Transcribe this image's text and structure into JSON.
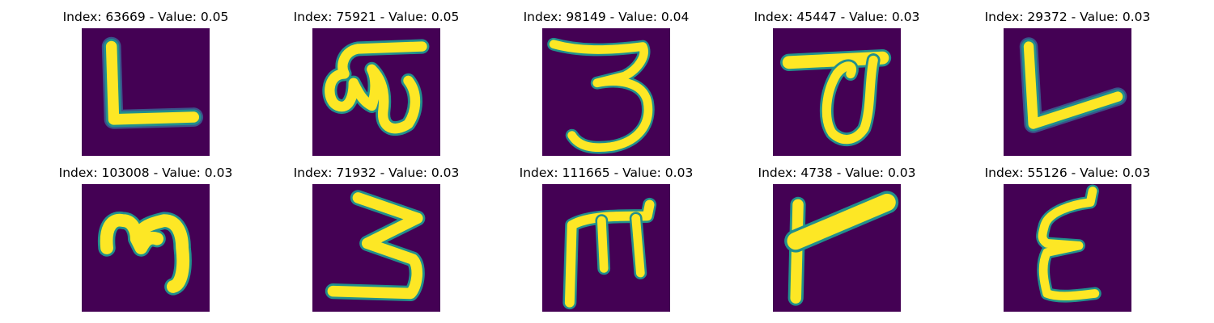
{
  "figure": {
    "panels": [
      {
        "index": "63669",
        "value": "0.05",
        "title": "Index: 63669 - Value: 0.05",
        "glyph": "glyph-L"
      },
      {
        "index": "75921",
        "value": "0.05",
        "title": "Index: 75921 - Value: 0.05",
        "glyph": "glyph-ta"
      },
      {
        "index": "98149",
        "value": "0.04",
        "title": "Index: 98149 - Value: 0.04",
        "glyph": "glyph-3"
      },
      {
        "index": "45447",
        "value": "0.03",
        "title": "Index: 45447 - Value: 0.03",
        "glyph": "glyph-loop"
      },
      {
        "index": "29372",
        "value": "0.03",
        "title": "Index: 29372 - Value: 0.03",
        "glyph": "glyph-L-slant"
      },
      {
        "index": "103008",
        "value": "0.03",
        "title": "Index: 103008 - Value: 0.03",
        "glyph": "glyph-m-hook"
      },
      {
        "index": "71932",
        "value": "0.03",
        "title": "Index: 71932 - Value: 0.03",
        "glyph": "glyph-3-large"
      },
      {
        "index": "111665",
        "value": "0.03",
        "title": "Index: 111665 - Value: 0.03",
        "glyph": "glyph-m-flat"
      },
      {
        "index": "4738",
        "value": "0.03",
        "title": "Index: 4738 - Value: 0.03",
        "glyph": "glyph-hook"
      },
      {
        "index": "55126",
        "value": "0.03",
        "title": "Index: 55126 - Value: 0.03",
        "glyph": "glyph-epsilon"
      }
    ],
    "colors": {
      "background": "#440154",
      "stroke_core": "#fde725",
      "stroke_edge": "#21908d",
      "stroke_halo": "#3b528b"
    }
  }
}
